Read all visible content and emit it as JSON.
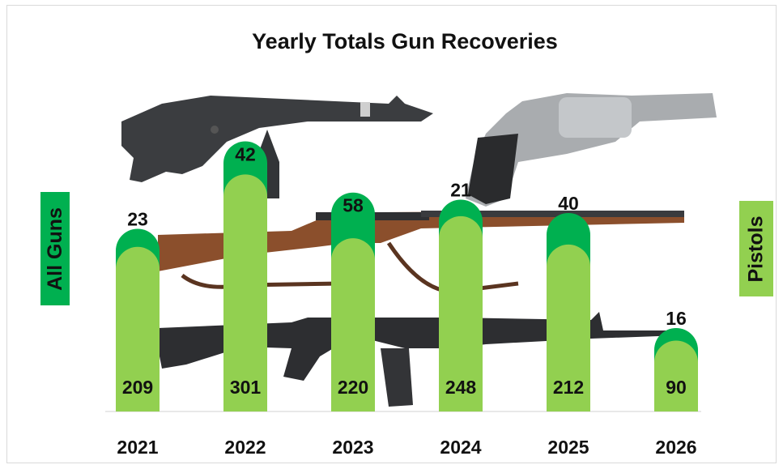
{
  "chart_data": {
    "type": "bar",
    "title": "Yearly Totals Gun Recoveries",
    "categories": [
      "2021",
      "2022",
      "2023",
      "2024",
      "2025",
      "2026"
    ],
    "series": [
      {
        "name": "Pistols",
        "values": [
          209,
          301,
          220,
          248,
          212,
          90
        ]
      },
      {
        "values": [
          23,
          42,
          58,
          21,
          40,
          16
        ]
      }
    ],
    "stacked": true,
    "ylabel_left": "All Guns",
    "ylabel_right": "Pistols",
    "ylim": [
      0,
      360
    ],
    "grid": false,
    "colors": {
      "pistols": "#92d050",
      "other": "#00b050"
    },
    "background_images": [
      "pistol-image",
      "revolver-image",
      "rifle-image",
      "assault-rifle-image"
    ]
  }
}
